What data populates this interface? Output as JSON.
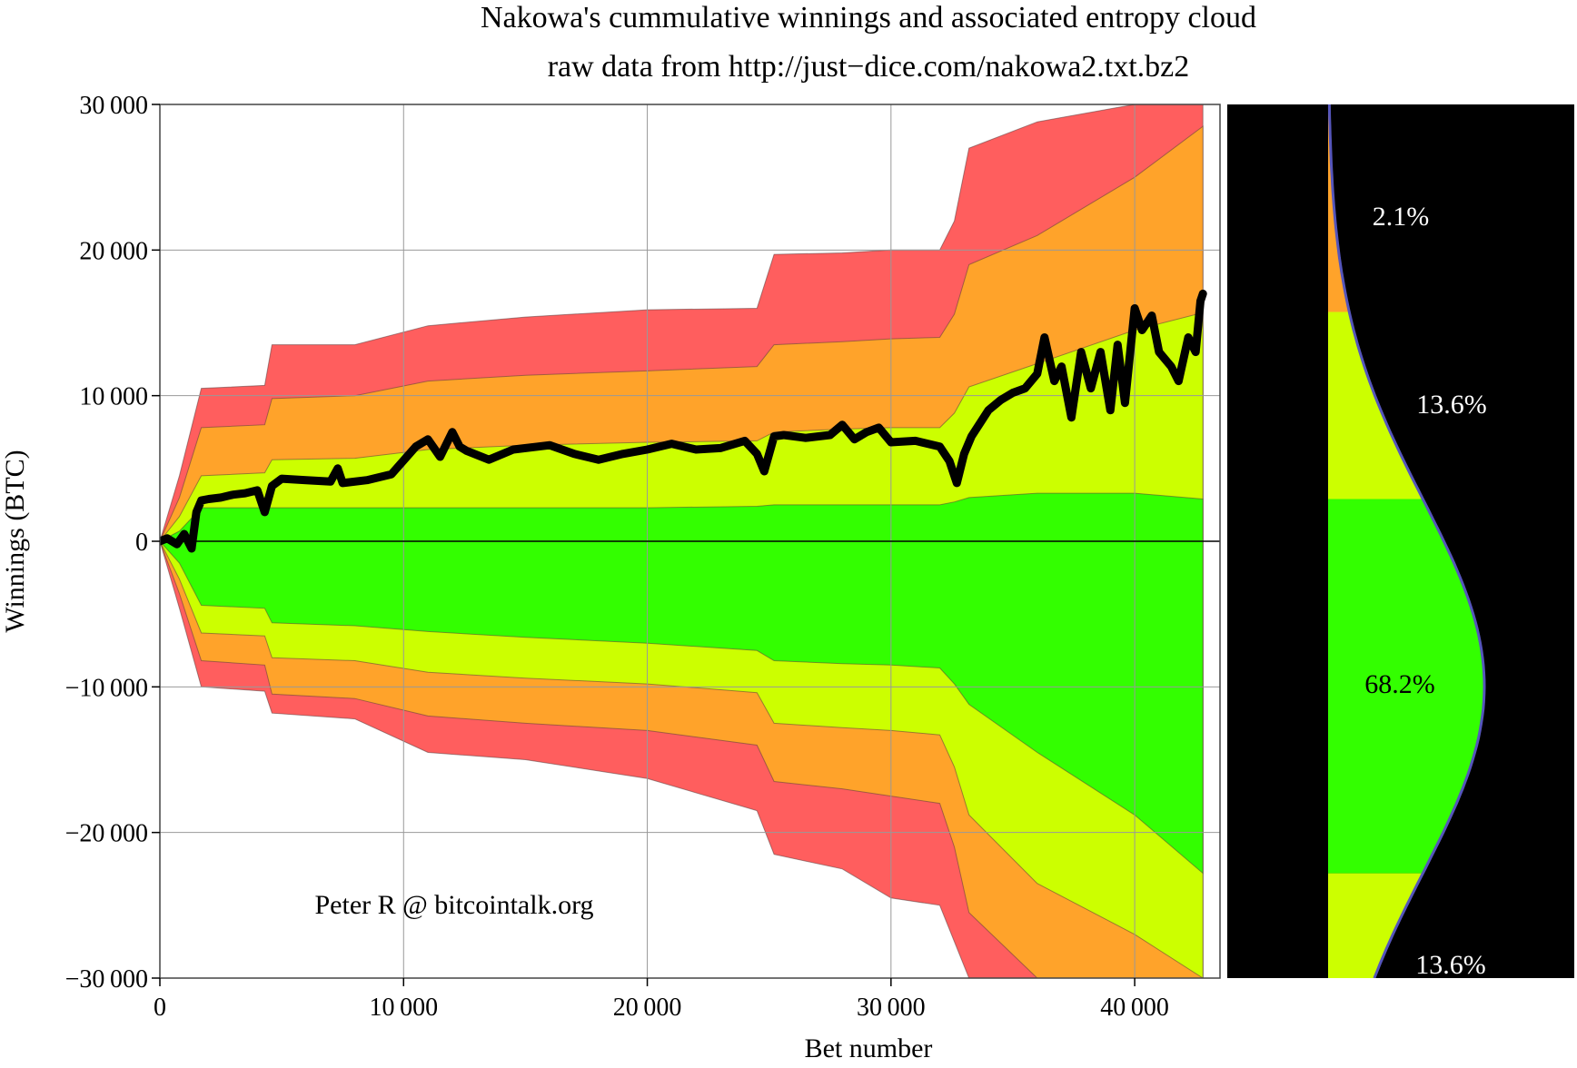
{
  "chart_data": {
    "type": "area",
    "title": "Nakowa's cummulative winnings and associated entropy cloud",
    "subtitle": "raw data from http://just−dice.com/nakowa2.txt.bz2",
    "xlabel": "Bet number",
    "ylabel": "Winnings (BTC)",
    "xlim": [
      0,
      43500
    ],
    "ylim": [
      -30000,
      30000
    ],
    "grid": true,
    "x_ticks": [
      0,
      10000,
      20000,
      30000,
      40000
    ],
    "x_tick_labels": [
      "0",
      "10 000",
      "20 000",
      "30 000",
      "40 000"
    ],
    "y_ticks": [
      30000,
      20000,
      10000,
      0,
      -10000,
      -20000,
      -30000
    ],
    "y_tick_labels": [
      "30 000",
      "20 000",
      "10 000",
      "0",
      "−10 000",
      "−20 000",
      "−30 000"
    ],
    "colors": {
      "sigma1": "#33ff00",
      "sigma2": "#ccff00",
      "sigma3": "#ffa32a",
      "sigma4": "#ff5e5e",
      "winnings": "#000000",
      "panel_bg": "#000000",
      "curve": "#5555bb"
    },
    "band_x": [
      0,
      800,
      1700,
      4300,
      4600,
      8000,
      11000,
      15000,
      20000,
      24500,
      25200,
      28000,
      30000,
      32000,
      32600,
      33200,
      36000,
      40000,
      42800
    ],
    "bands": {
      "upper_4": [
        0,
        4500,
        10500,
        10700,
        13500,
        13500,
        14800,
        15400,
        15900,
        16000,
        19700,
        19800,
        20000,
        20000,
        22000,
        27000,
        28800,
        30000,
        30000
      ],
      "upper_3": [
        0,
        3000,
        7800,
        8000,
        9800,
        10000,
        11000,
        11400,
        11700,
        12000,
        13500,
        13700,
        13900,
        14000,
        15600,
        19000,
        21000,
        25000,
        28500
      ],
      "upper_2": [
        0,
        1700,
        4500,
        4700,
        5600,
        5700,
        6300,
        6600,
        6800,
        6900,
        7500,
        7700,
        7800,
        7800,
        8800,
        10600,
        12200,
        14500,
        15700
      ],
      "upper_1": [
        0,
        700,
        2300,
        2300,
        2300,
        2300,
        2300,
        2300,
        2300,
        2400,
        2500,
        2500,
        2500,
        2500,
        2700,
        3000,
        3300,
        3300,
        2900
      ],
      "lower_1": [
        0,
        -1500,
        -4400,
        -4600,
        -5600,
        -5800,
        -6200,
        -6600,
        -7000,
        -7500,
        -8200,
        -8400,
        -8500,
        -8700,
        -9800,
        -11200,
        -14500,
        -18800,
        -22800
      ],
      "lower_2": [
        0,
        -2600,
        -6300,
        -6500,
        -8000,
        -8200,
        -9000,
        -9400,
        -9800,
        -10400,
        -12500,
        -12800,
        -13000,
        -13300,
        -15500,
        -18800,
        -23500,
        -27000,
        -30000
      ],
      "lower_3": [
        0,
        -3600,
        -8200,
        -8500,
        -10500,
        -10800,
        -12000,
        -12500,
        -13000,
        -14000,
        -16500,
        -17000,
        -17500,
        -18000,
        -21000,
        -25500,
        -30000,
        -30000,
        -30000
      ],
      "lower_4": [
        0,
        -4600,
        -10000,
        -10300,
        -11800,
        -12200,
        -14500,
        -15000,
        -16300,
        -18500,
        -21500,
        -22500,
        -24500,
        -25000,
        -27500,
        -30000,
        -30000,
        -30000,
        -30000
      ]
    },
    "series": [
      {
        "x": [
          0,
          300,
          700,
          1000,
          1300,
          1500,
          1700,
          2000,
          2500,
          3000,
          3500,
          4000,
          4300,
          4600,
          5000,
          6000,
          7000,
          7300,
          7500,
          8500,
          9500,
          10500,
          11000,
          11500,
          12000,
          12300,
          12600,
          13500,
          14500,
          15500,
          16000,
          17000,
          18000,
          19000,
          20000,
          21000,
          22000,
          23000,
          24000,
          24500,
          24800,
          25200,
          25600,
          26500,
          27500,
          28000,
          28500,
          29000,
          29500,
          30000,
          31000,
          32000,
          32400,
          32700,
          33000,
          33300,
          34000,
          34500,
          35000,
          35500,
          36000,
          36300,
          36700,
          37000,
          37400,
          37800,
          38200,
          38600,
          39000,
          39300,
          39600,
          40000,
          40300,
          40700,
          41000,
          41500,
          41800,
          42200,
          42500,
          42700,
          42800
        ],
        "y": [
          0,
          200,
          -200,
          500,
          -500,
          2000,
          2800,
          2900,
          3000,
          3200,
          3300,
          3500,
          2000,
          3800,
          4300,
          4200,
          4100,
          5000,
          4000,
          4200,
          4600,
          6500,
          7000,
          5800,
          7500,
          6500,
          6200,
          5600,
          6300,
          6500,
          6600,
          6000,
          5600,
          6000,
          6300,
          6700,
          6300,
          6400,
          6900,
          6000,
          4800,
          7200,
          7300,
          7100,
          7300,
          8000,
          7000,
          7500,
          7800,
          6800,
          6900,
          6500,
          5500,
          4000,
          6000,
          7200,
          9000,
          9700,
          10200,
          10500,
          11500,
          14000,
          11000,
          12000,
          8500,
          13000,
          10500,
          13000,
          9000,
          13500,
          9500,
          16000,
          14500,
          15500,
          13000,
          12000,
          11000,
          14000,
          13000,
          16500,
          17000
        ]
      }
    ],
    "annotations": [
      "Peter R @ bitcointalk.org"
    ],
    "side_panel": {
      "type": "distribution",
      "labels": [
        "2.1%",
        "13.6%",
        "68.2%",
        "13.6%"
      ]
    }
  }
}
